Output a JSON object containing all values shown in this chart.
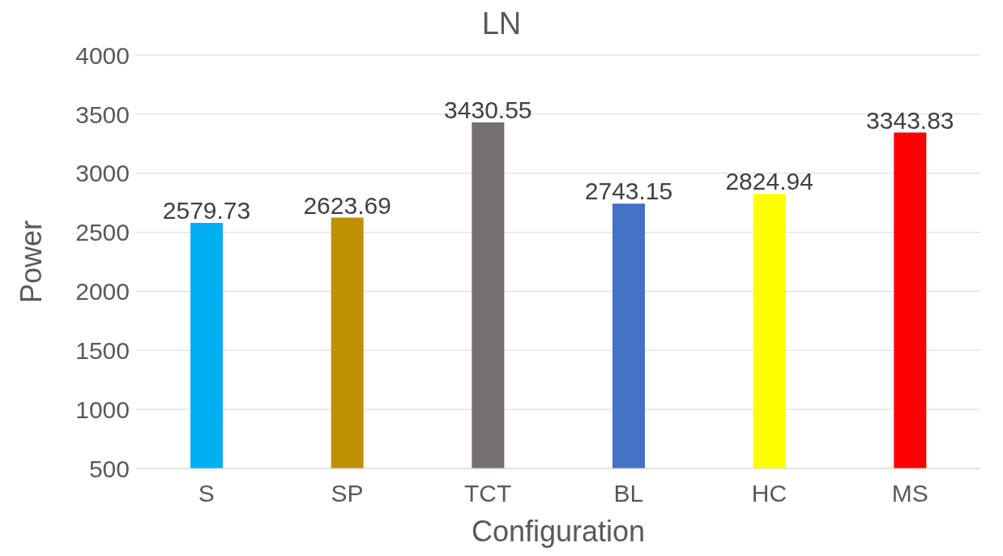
{
  "chart_data": {
    "type": "bar",
    "title": "LN",
    "xlabel": "Configuration",
    "ylabel": "Power",
    "categories": [
      "S",
      "SP",
      "TCT",
      "BL",
      "HC",
      "MS"
    ],
    "values": [
      2579.73,
      2623.69,
      3430.55,
      2743.15,
      2824.94,
      3343.83
    ],
    "colors": [
      "#00b0f0",
      "#bf9000",
      "#767171",
      "#4472c4",
      "#ffff00",
      "#ff0000"
    ],
    "ylim": [
      500,
      4000
    ],
    "yticks": [
      500,
      1000,
      1500,
      2000,
      2500,
      3000,
      3500,
      4000
    ],
    "grid": "y",
    "data_labels": true
  }
}
